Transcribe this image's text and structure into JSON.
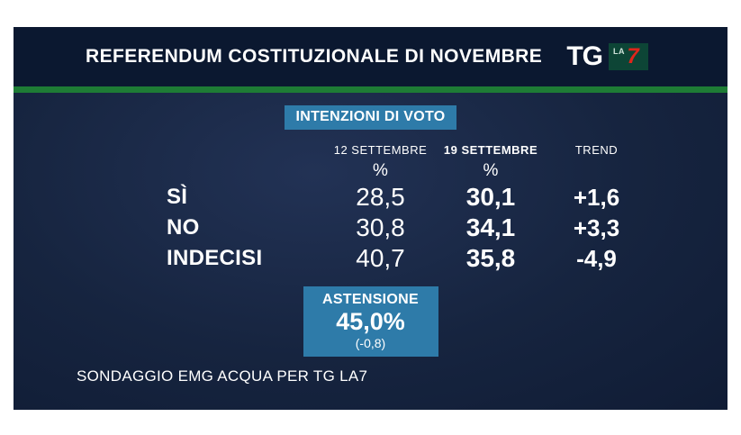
{
  "header": {
    "title": "REFERENDUM COSTITUZIONALE DI NOVEMBRE",
    "logo": {
      "tg": "TG",
      "la": "LA",
      "seven": "7"
    }
  },
  "badge": "INTENZIONI DI VOTO",
  "table": {
    "columns": [
      "12 SETTEMBRE",
      "19 SETTEMBRE",
      "TREND"
    ],
    "percent_symbol": "%",
    "rows": [
      {
        "label": "SÌ",
        "col1": "28,5",
        "col2": "30,1",
        "trend": "+1,6"
      },
      {
        "label": "NO",
        "col1": "30,8",
        "col2": "34,1",
        "trend": "+3,3"
      },
      {
        "label": "INDECISI",
        "col1": "40,7",
        "col2": "35,8",
        "trend": "-4,9"
      }
    ]
  },
  "astensione": {
    "label": "ASTENSIONE",
    "value": "45,0%",
    "change": "(-0,8)"
  },
  "footer": "SONDAGGIO EMG ACQUA PER TG LA7",
  "colors": {
    "panel_background": "#16243f",
    "header_bar": "#0b1830",
    "green_line": "#1e7c35",
    "badge_blue": "#2e7ba9",
    "text": "#ffffff",
    "logo_red": "#e1251b",
    "logo_box_green": "#0d4536"
  },
  "chart_data": {
    "type": "table",
    "title": "INTENZIONI DI VOTO",
    "subtitle": "REFERENDUM COSTITUZIONALE DI NOVEMBRE",
    "categories": [
      "SÌ",
      "NO",
      "INDECISI"
    ],
    "series": [
      {
        "name": "12 SETTEMBRE",
        "values": [
          28.5,
          30.8,
          40.7
        ]
      },
      {
        "name": "19 SETTEMBRE",
        "values": [
          30.1,
          34.1,
          35.8
        ]
      },
      {
        "name": "TREND",
        "values": [
          1.6,
          3.3,
          -4.9
        ]
      }
    ],
    "astensione": {
      "label": "ASTENSIONE",
      "value": 45.0,
      "trend": -0.8
    },
    "source": "SONDAGGIO EMG ACQUA PER TG LA7",
    "units": "%"
  }
}
